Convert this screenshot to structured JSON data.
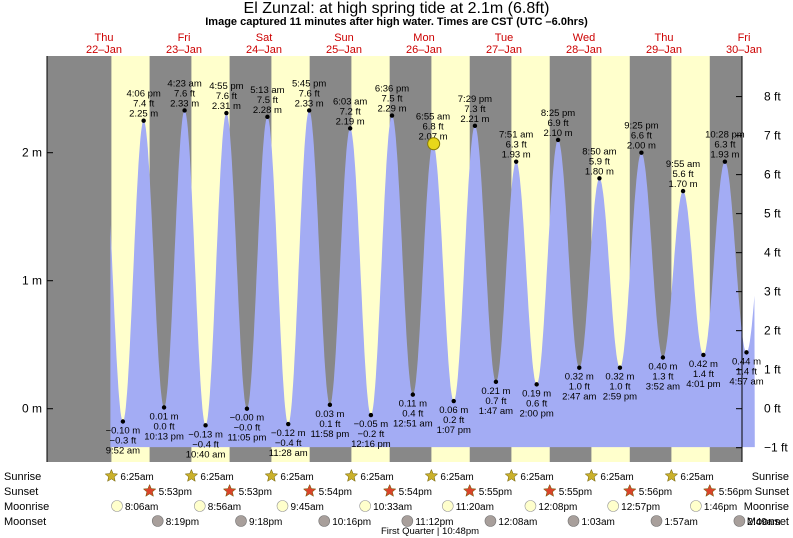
{
  "title": "El Zunzal: at high  spring tide at 2.1m (6.8ft)",
  "subtitle": "Image captured 11 minutes after high water. Times are CST (UTC –6.0hrs)",
  "colors": {
    "water": "#a3acf4",
    "day": "#ffffcc",
    "night": "#888888",
    "day_label": "#cc0000",
    "star_sunrise": "#c9b02a",
    "star_sunset": "#d9442a",
    "moonrise": "#ffffcc",
    "moonset": "#a89f9b",
    "current": "#e8d81a"
  },
  "chart_data": {
    "type": "area",
    "title": "El Zunzal: at high  spring tide at 2.1m (6.8ft)",
    "x_unit": "hours from 22-Jan 00:00 CST",
    "ylabel_left": "m",
    "ylabel_right": "ft",
    "ylim": [
      -0.3,
      2.88
    ],
    "y_ticks_m": [
      {
        "v": 0,
        "label": "0 m"
      },
      {
        "v": 1,
        "label": "1 m"
      },
      {
        "v": 2,
        "label": "2 m"
      }
    ],
    "y_ticks_ft": [
      "−1 ft",
      "0 ft",
      "1 ft",
      "2 ft",
      "3 ft",
      "4 ft",
      "5 ft",
      "6 ft",
      "7 ft",
      "8 ft"
    ],
    "days": [
      {
        "dow": "Thu",
        "date": "22–Jan"
      },
      {
        "dow": "Fri",
        "date": "23–Jan"
      },
      {
        "dow": "Sat",
        "date": "24–Jan"
      },
      {
        "dow": "Sun",
        "date": "25–Jan"
      },
      {
        "dow": "Mon",
        "date": "26–Jan"
      },
      {
        "dow": "Tue",
        "date": "27–Jan"
      },
      {
        "dow": "Wed",
        "date": "28–Jan"
      },
      {
        "dow": "Thu",
        "date": "29–Jan"
      },
      {
        "dow": "Fri",
        "date": "30–Jan"
      }
    ],
    "tides": [
      {
        "t": 9.87,
        "m": -0.1,
        "lines": [
          "−0.10 m",
          "−0.3 ft",
          "9:52 am"
        ],
        "type": "low"
      },
      {
        "t": 16.1,
        "m": 2.25,
        "lines": [
          "4:06 pm",
          "7.4 ft",
          "2.25 m"
        ],
        "type": "high"
      },
      {
        "t": 22.22,
        "m": 0.01,
        "lines": [
          "0.01 m",
          "0.0 ft",
          "10:13 pm"
        ],
        "type": "low"
      },
      {
        "t": 28.38,
        "m": 2.33,
        "lines": [
          "4:23 am",
          "7.6 ft",
          "2.33 m"
        ],
        "type": "high"
      },
      {
        "t": 34.67,
        "m": -0.13,
        "lines": [
          "−0.13 m",
          "−0.4 ft",
          "10:40 am"
        ],
        "type": "low"
      },
      {
        "t": 40.92,
        "m": 2.31,
        "lines": [
          "4:55 pm",
          "7.6 ft",
          "2.31 m"
        ],
        "type": "high"
      },
      {
        "t": 47.08,
        "m": -0.0,
        "lines": [
          "−0.00 m",
          "−0.0 ft",
          "11:05 pm"
        ],
        "type": "low"
      },
      {
        "t": 53.22,
        "m": 2.28,
        "lines": [
          "5:13 am",
          "7.5 ft",
          "2.28 m"
        ],
        "type": "high"
      },
      {
        "t": 59.47,
        "m": -0.12,
        "lines": [
          "−0.12 m",
          "−0.4 ft",
          "11:28 am"
        ],
        "type": "low"
      },
      {
        "t": 65.75,
        "m": 2.33,
        "lines": [
          "5:45 pm",
          "7.6 ft",
          "2.33 m"
        ],
        "type": "high"
      },
      {
        "t": 71.97,
        "m": 0.03,
        "lines": [
          "0.03 m",
          "0.1 ft",
          "11:58 pm"
        ],
        "type": "low"
      },
      {
        "t": 78.05,
        "m": 2.19,
        "lines": [
          "6:03 am",
          "7.2 ft",
          "2.19 m"
        ],
        "type": "high"
      },
      {
        "t": 84.27,
        "m": -0.05,
        "lines": [
          "−0.05 m",
          "−0.2 ft",
          "12:16 pm"
        ],
        "type": "low"
      },
      {
        "t": 90.6,
        "m": 2.29,
        "lines": [
          "6:36 pm",
          "7.5 ft",
          "2.29 m"
        ],
        "type": "high"
      },
      {
        "t": 96.85,
        "m": 0.11,
        "lines": [
          "0.11 m",
          "0.4 ft",
          "12:51 am"
        ],
        "type": "low"
      },
      {
        "t": 102.92,
        "m": 2.07,
        "lines": [
          "6:55 am",
          "6.8 ft",
          "2.07 m"
        ],
        "type": "high"
      },
      {
        "t": 109.12,
        "m": 0.06,
        "lines": [
          "0.06 m",
          "0.2 ft",
          "1:07 pm"
        ],
        "type": "low"
      },
      {
        "t": 115.48,
        "m": 2.21,
        "lines": [
          "7:29 pm",
          "7.3 ft",
          "2.21 m"
        ],
        "type": "high"
      },
      {
        "t": 121.78,
        "m": 0.21,
        "lines": [
          "0.21 m",
          "0.7 ft",
          "1:47 am"
        ],
        "type": "low"
      },
      {
        "t": 127.85,
        "m": 1.93,
        "lines": [
          "7:51 am",
          "6.3 ft",
          "1.93 m"
        ],
        "type": "high"
      },
      {
        "t": 134.0,
        "m": 0.19,
        "lines": [
          "0.19 m",
          "0.6 ft",
          "2:00 pm"
        ],
        "type": "low"
      },
      {
        "t": 140.42,
        "m": 2.1,
        "lines": [
          "8:25 pm",
          "6.9 ft",
          "2.10 m"
        ],
        "type": "high"
      },
      {
        "t": 146.78,
        "m": 0.32,
        "lines": [
          "0.32 m",
          "1.0 ft",
          "2:47 am"
        ],
        "type": "low"
      },
      {
        "t": 152.83,
        "m": 1.8,
        "lines": [
          "8:50 am",
          "5.9 ft",
          "1.80 m"
        ],
        "type": "high"
      },
      {
        "t": 158.98,
        "m": 0.32,
        "lines": [
          "0.32 m",
          "1.0 ft",
          "2:59 pm"
        ],
        "type": "low"
      },
      {
        "t": 165.42,
        "m": 2.0,
        "lines": [
          "9:25 pm",
          "6.6 ft",
          "2.00 m"
        ],
        "type": "high"
      },
      {
        "t": 171.87,
        "m": 0.4,
        "lines": [
          "0.40 m",
          "1.3 ft",
          "3:52 am"
        ],
        "type": "low"
      },
      {
        "t": 177.92,
        "m": 1.7,
        "lines": [
          "9:55 am",
          "5.6 ft",
          "1.70 m"
        ],
        "type": "high"
      },
      {
        "t": 184.02,
        "m": 0.42,
        "lines": [
          "0.42 m",
          "1.4 ft",
          "4:01 pm"
        ],
        "type": "low"
      },
      {
        "t": 190.47,
        "m": 1.93,
        "lines": [
          "10:28 pm",
          "6.3 ft",
          "1.93 m"
        ],
        "type": "high"
      },
      {
        "t": 196.95,
        "m": 0.44,
        "lines": [
          "0.44 m",
          "1.4 ft",
          "4:57 am"
        ],
        "type": "low"
      }
    ],
    "current_marker": {
      "t": 103.1,
      "m": 2.07
    },
    "legend_rows": [
      "Sunrise",
      "Sunset",
      "Moonrise",
      "Moonset"
    ],
    "sunrise": [
      {
        "t": 6.42,
        "label": "6:25am"
      },
      {
        "t": 30.42,
        "label": "6:25am"
      },
      {
        "t": 54.42,
        "label": "6:25am"
      },
      {
        "t": 78.42,
        "label": "6:25am"
      },
      {
        "t": 102.42,
        "label": "6:25am"
      },
      {
        "t": 126.42,
        "label": "6:25am"
      },
      {
        "t": 150.42,
        "label": "6:25am"
      },
      {
        "t": 174.42,
        "label": "6:25am"
      }
    ],
    "sunset": [
      {
        "t": 17.88,
        "label": "5:53pm"
      },
      {
        "t": 41.88,
        "label": "5:53pm"
      },
      {
        "t": 65.9,
        "label": "5:54pm"
      },
      {
        "t": 89.9,
        "label": "5:54pm"
      },
      {
        "t": 113.92,
        "label": "5:55pm"
      },
      {
        "t": 137.92,
        "label": "5:55pm"
      },
      {
        "t": 161.93,
        "label": "5:56pm"
      },
      {
        "t": 185.93,
        "label": "5:56pm"
      }
    ],
    "moonrise": [
      {
        "t": 8.1,
        "label": "8:06am"
      },
      {
        "t": 32.93,
        "label": "8:56am"
      },
      {
        "t": 57.75,
        "label": "9:45am"
      },
      {
        "t": 82.55,
        "label": "10:33am"
      },
      {
        "t": 107.33,
        "label": "11:20am"
      },
      {
        "t": 132.13,
        "label": "12:08pm"
      },
      {
        "t": 156.95,
        "label": "12:57pm"
      },
      {
        "t": 181.77,
        "label": "1:46pm"
      }
    ],
    "moonset": [
      {
        "t": 20.32,
        "label": "8:19pm"
      },
      {
        "t": 45.3,
        "label": "9:18pm"
      },
      {
        "t": 70.27,
        "label": "10:16pm"
      },
      {
        "t": 95.2,
        "label": "11:12pm"
      },
      {
        "t": 120.13,
        "label": "12:08am"
      },
      {
        "t": 145.05,
        "label": "1:03am"
      },
      {
        "t": 169.95,
        "label": "1:57am"
      },
      {
        "t": 194.82,
        "label": "2:49am"
      }
    ],
    "moon_phase": "First Quarter | 10:48pm"
  }
}
